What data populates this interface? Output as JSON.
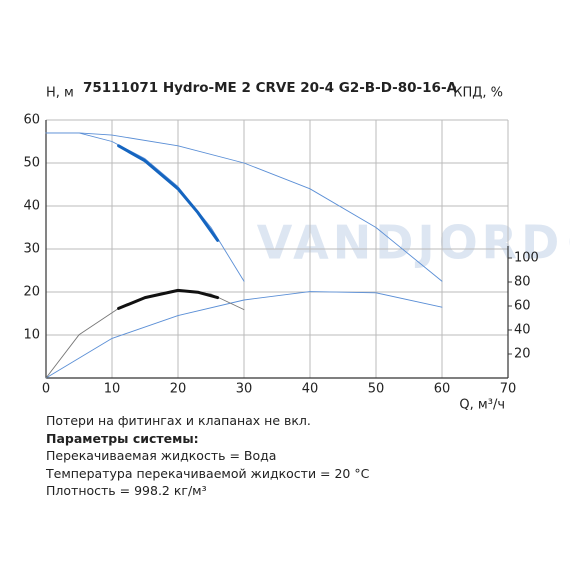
{
  "chart_data": {
    "type": "line",
    "title": "75111071 Hydro-ME 2 CRVE 20-4 G2-B-D-80-16-A",
    "ylabel": "H, м",
    "y2label": "КПД, %",
    "xlabel": "Q, м³/ч",
    "watermark": "VANDJORD®",
    "xlim": [
      0,
      70
    ],
    "xticks": [
      0,
      10,
      20,
      30,
      40,
      50,
      60,
      70
    ],
    "ylim": [
      0,
      60
    ],
    "yticks": [
      10,
      20,
      30,
      40,
      50,
      60
    ],
    "y2lim": [
      0,
      215
    ],
    "y2ticks": [
      20,
      40,
      60,
      80,
      100
    ],
    "grid": true,
    "series": [
      {
        "color": "#5b8fd6",
        "bold": false,
        "x": [
          0,
          5,
          10,
          20,
          30,
          40,
          50,
          60
        ],
        "values": [
          57,
          57,
          56.5,
          54,
          50,
          44,
          35,
          22.5
        ]
      },
      {
        "color": "#5b8fd6",
        "bold": false,
        "x": [
          0,
          5,
          10,
          15,
          20,
          25,
          30
        ],
        "values": [
          57,
          57,
          55,
          51,
          44.5,
          35,
          22.5
        ]
      },
      {
        "color": "#1565c0",
        "bold": true,
        "x": [
          11,
          15,
          20,
          23,
          26
        ],
        "values": [
          54,
          50.5,
          44,
          38.5,
          32
        ]
      },
      {
        "color": "#5b8fd6",
        "bold": false,
        "axis": "y2",
        "x": [
          0,
          10,
          20,
          30,
          40,
          50,
          60
        ],
        "values": [
          0,
          33,
          52,
          65,
          72,
          71,
          59
        ]
      },
      {
        "color": "#777777",
        "bold": false,
        "axis": "y2",
        "x": [
          0,
          5,
          11,
          15,
          20,
          25,
          30
        ],
        "values": [
          0,
          36,
          58,
          67,
          73,
          70,
          57
        ]
      },
      {
        "color": "#111111",
        "bold": true,
        "axis": "y2",
        "x": [
          11,
          15,
          20,
          23,
          26
        ],
        "values": [
          58,
          67,
          73,
          71.5,
          67
        ]
      }
    ]
  },
  "notes": [
    "Потери на фитингах и клапанах не вкл.",
    "Параметры системы:",
    "Перекачиваемая жидкость = Вода",
    "Температура перекачиваемой жидкости = 20 °C",
    "Плотность = 998.2 кг/м³"
  ]
}
